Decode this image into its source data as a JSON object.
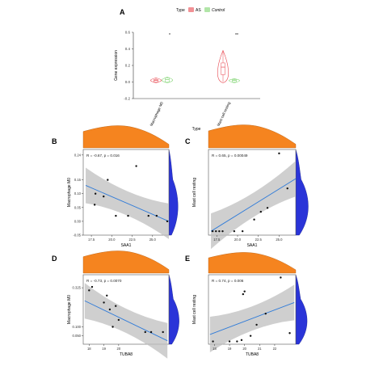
{
  "colors": {
    "as": "#e8474f",
    "control": "#7dd36e",
    "density_top": "#f5841f",
    "density_right": "#2a34d8",
    "regression": "#2f7bd9",
    "band": "#bfbfbf",
    "panel_bg": "#ebebeb"
  },
  "chart_data": [
    {
      "panel": "A",
      "type": "box",
      "legend_title": "Type",
      "legend": [
        "AS",
        "Control"
      ],
      "legend_placement": "top",
      "ylabel": "Gene expression",
      "xlabel": "Type",
      "categories": [
        "Macrophage M0",
        "Mast cell resting"
      ],
      "y_ticks": [
        "0.6",
        "0.4",
        "0.2",
        "0.0",
        "-0.2"
      ],
      "ylim": [
        -0.2,
        0.6
      ],
      "significance": [
        "*",
        "**"
      ],
      "series": [
        {
          "name": "AS",
          "medians": [
            0.02,
            0.18
          ],
          "q1": [
            0.0,
            0.09
          ],
          "q3": [
            0.03,
            0.23
          ],
          "min": [
            0.0,
            0.0
          ],
          "max": [
            0.05,
            0.38
          ]
        },
        {
          "name": "Control",
          "medians": [
            0.03,
            0.02
          ],
          "q1": [
            0.0,
            0.0
          ],
          "q3": [
            0.05,
            0.03
          ],
          "min": [
            0.0,
            0.0
          ],
          "max": [
            0.06,
            0.04
          ]
        }
      ]
    },
    {
      "panel": "B",
      "type": "scatter",
      "annotation": "R = -0.67, p = 0.016",
      "xlabel": "SAA1",
      "ylabel": "Macrophage M0",
      "x_ticks": [
        "17.5",
        "20.0",
        "22.5",
        "25.0"
      ],
      "y_ticks": [
        "0.24",
        "0.15",
        "0.10",
        "0.05",
        "0.00",
        "-0.05"
      ],
      "xlim": [
        16.5,
        27
      ],
      "ylim": [
        -0.05,
        0.26
      ],
      "x": [
        18.0,
        19.0,
        17.9,
        23.0,
        20.5,
        22.0,
        24.5,
        25.5,
        26.8,
        19.5
      ],
      "y": [
        0.1,
        0.09,
        0.06,
        0.2,
        0.02,
        0.02,
        0.02,
        0.02,
        0.0,
        0.15
      ],
      "fit": [
        [
          16.8,
          0.13
        ],
        [
          27.0,
          0.0
        ]
      ]
    },
    {
      "panel": "C",
      "type": "scatter",
      "annotation": "R = 0.65, p = 0.00049",
      "xlabel": "SAA1",
      "ylabel": "Mast cell resting",
      "x_ticks": [
        "17.5",
        "20.0",
        "22.5",
        "25.0"
      ],
      "y_ticks": [],
      "xlim": [
        16.5,
        27
      ],
      "ylim": [
        -0.02,
        0.42
      ],
      "x": [
        17.0,
        17.4,
        17.8,
        18.2,
        19.6,
        20.6,
        22.0,
        22.8,
        23.6,
        25.0,
        26.0
      ],
      "y": [
        0.0,
        0.0,
        0.0,
        0.0,
        0.0,
        0.0,
        0.06,
        0.1,
        0.12,
        0.4,
        0.22
      ],
      "fit": [
        [
          16.8,
          0.0
        ],
        [
          27.0,
          0.27
        ]
      ]
    },
    {
      "panel": "D",
      "type": "scatter",
      "annotation": "R = -0.73, p = 0.0070",
      "xlabel": "TUBA8",
      "ylabel": "Macrophage M0",
      "x_ticks": [
        "18",
        "19",
        "20"
      ],
      "y_ticks": [
        "0.325",
        "0.100",
        "0.050"
      ],
      "xlim": [
        17.6,
        23.4
      ],
      "ylim": [
        0.0,
        0.4
      ],
      "x": [
        18.2,
        19.2,
        19.0,
        19.8,
        20.0,
        19.4,
        21.8,
        22.2,
        23.0,
        18.0,
        19.6
      ],
      "y": [
        0.33,
        0.28,
        0.24,
        0.22,
        0.14,
        0.2,
        0.07,
        0.07,
        0.07,
        0.31,
        0.1
      ],
      "fit": [
        [
          17.7,
          0.25
        ],
        [
          23.3,
          0.02
        ]
      ]
    },
    {
      "panel": "E",
      "type": "scatter",
      "annotation": "R = 0.74, p = 0.006",
      "xlabel": "TUBA8",
      "ylabel": "Mast cell resting",
      "x_ticks": [
        "18",
        "19",
        "20",
        "21",
        "22"
      ],
      "y_ticks": [],
      "xlim": [
        17.6,
        23.4
      ],
      "ylim": [
        -0.02,
        0.48
      ],
      "x": [
        17.9,
        19.0,
        19.5,
        19.8,
        20.4,
        20.8,
        19.9,
        21.4,
        22.4,
        23.0,
        20.0
      ],
      "y": [
        0.0,
        0.0,
        0.0,
        0.01,
        0.04,
        0.12,
        0.34,
        0.2,
        0.46,
        0.06,
        0.36
      ],
      "fit": [
        [
          17.7,
          0.05
        ],
        [
          23.3,
          0.28
        ]
      ]
    }
  ]
}
